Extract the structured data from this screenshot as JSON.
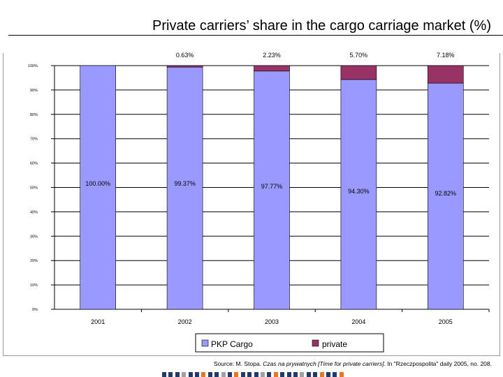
{
  "title": "Private carriers’ share in the cargo carriage market (%)",
  "source": {
    "prefix": "Source: M. Stopa. ",
    "italic": "Czas na prywatnych [Time for private carriers]",
    "suffix": ". In \"Rzeczpospolita\" daily 2005, no. 208."
  },
  "colors": {
    "pkp": "#9999FF",
    "private": "#993366",
    "gridline": "#000000",
    "footer_blue": "#1F3A6B",
    "footer_orange": "#E87722",
    "footer_grey": "#A0A0A0"
  },
  "chart_data": {
    "type": "bar",
    "stacked": true,
    "categories": [
      "2001",
      "2002",
      "2003",
      "2004",
      "2005"
    ],
    "series": [
      {
        "name": "PKP Cargo",
        "values": [
          100.0,
          99.37,
          97.77,
          94.3,
          92.82
        ],
        "labels": [
          "100.00%",
          "99.37%",
          "97.77%",
          "94.30%",
          "92.82%"
        ]
      },
      {
        "name": "private",
        "values": [
          0,
          0.63,
          2.23,
          5.7,
          7.18
        ],
        "labels": [
          "",
          "0.63%",
          "2.23%",
          "5.70%",
          "7.18%"
        ]
      }
    ],
    "y_ticks": [
      "0%",
      "10%",
      "20%",
      "30%",
      "40%",
      "50%",
      "60%",
      "70%",
      "80%",
      "90%",
      "100%"
    ],
    "ylim": [
      0,
      100
    ],
    "grid": true,
    "legend_position": "bottom"
  }
}
